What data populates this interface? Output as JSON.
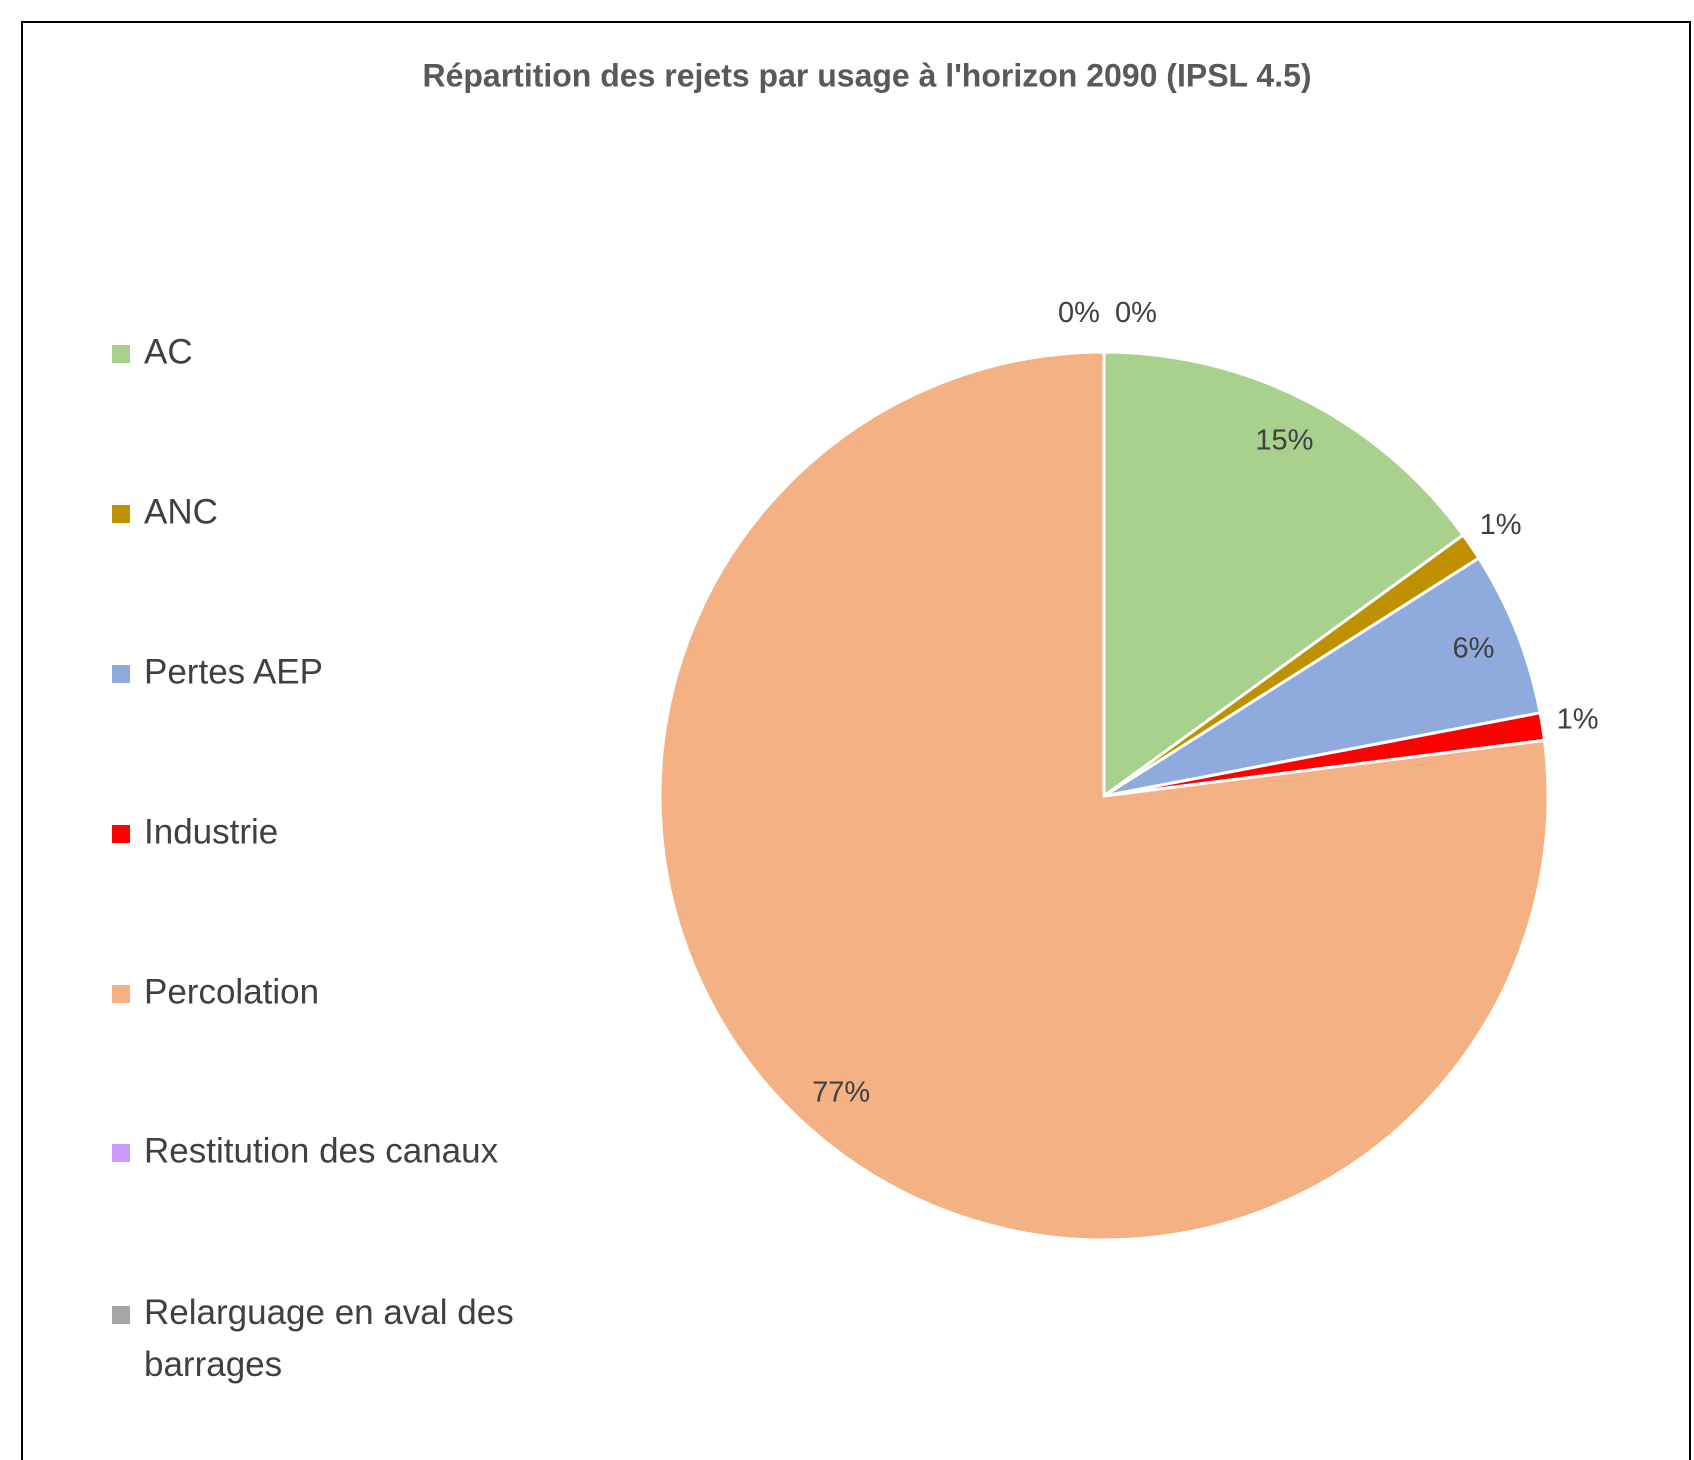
{
  "chart_data": {
    "type": "pie",
    "title": "Répartition des rejets par usage à l'horizon 2090 (IPSL 4.5)",
    "categories": [
      "AC",
      "ANC",
      "Pertes AEP",
      "Industrie",
      "Percolation",
      "Restitution des canaux",
      "Relarguage en aval des barrages"
    ],
    "values": [
      15,
      1,
      6,
      1,
      77,
      0,
      0
    ],
    "value_labels": [
      "15%",
      "1%",
      "6%",
      "1%",
      "77%",
      "0%",
      "0%"
    ],
    "colors": [
      "#a9d18e",
      "#bf9000",
      "#8faadc",
      "#ff0000",
      "#f4b183",
      "#cc99ff",
      "#a5a5a5"
    ],
    "legend": "left"
  }
}
